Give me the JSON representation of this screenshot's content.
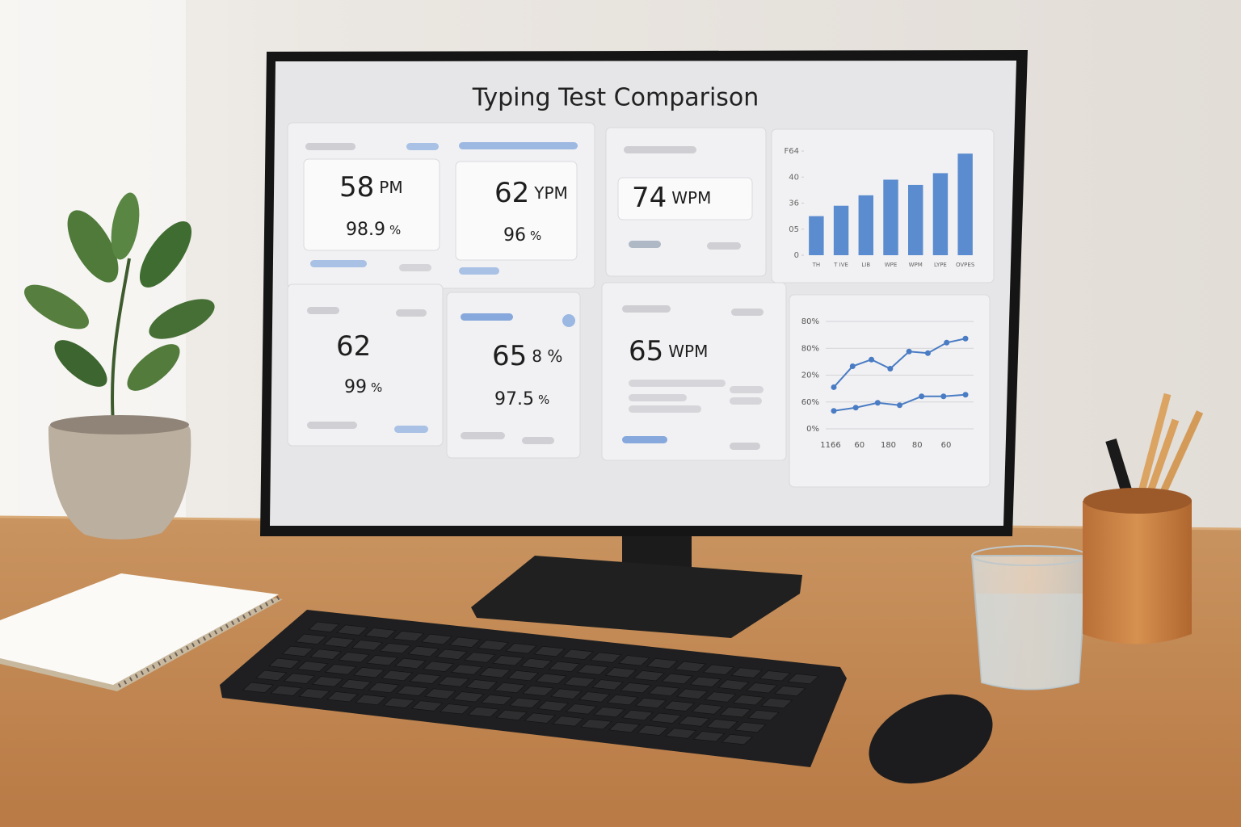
{
  "screen": {
    "title": "Typing Test Comparison",
    "cards": [
      {
        "wpm": "58",
        "wpm_unit": "PM",
        "accuracy": "98.9",
        "accuracy_unit": "%"
      },
      {
        "wpm": "62",
        "wpm_unit": "YPM",
        "accuracy": "96",
        "accuracy_unit": "%"
      },
      {
        "wpm": "74",
        "wpm_unit": "WPM"
      },
      {
        "wpm": "62",
        "accuracy": "99",
        "accuracy_unit": "%"
      },
      {
        "wpm": "65",
        "wpm_unit": "8 %",
        "accuracy": "97.5",
        "accuracy_unit": "%"
      },
      {
        "wpm": "65",
        "wpm_unit": "WPM"
      }
    ],
    "bar_chart": {
      "type": "bar",
      "categories": [
        "TH",
        "T IVE",
        "LIB",
        "WPE",
        "WPM",
        "LYPE",
        "OVPES"
      ],
      "values": [
        1.5,
        1.9,
        2.3,
        2.9,
        2.7,
        3.15,
        3.9
      ],
      "color": "#5b8ccf",
      "ylim": [
        0,
        4
      ],
      "yticks": [
        {
          "value": 0,
          "label": "0"
        },
        {
          "value": 1,
          "label": "05"
        },
        {
          "value": 2,
          "label": "36"
        },
        {
          "value": 3,
          "label": "40"
        },
        {
          "value": 4,
          "label": "F64"
        }
      ]
    },
    "line_chart": {
      "type": "line",
      "x_labels": [
        "1166",
        "60",
        "180",
        "80",
        "60"
      ],
      "series": [
        {
          "color": "#4a7cc4",
          "values": [
            1.55,
            2.33,
            2.58,
            2.24,
            2.88,
            2.82,
            3.21,
            3.36
          ]
        },
        {
          "color": "#4a7cc4",
          "values": [
            0.67,
            0.79,
            0.97,
            0.88,
            1.21,
            1.21,
            1.27
          ]
        }
      ],
      "ylim": [
        0,
        4
      ],
      "yticks": [
        {
          "value": 0,
          "label": "0%"
        },
        {
          "value": 1,
          "label": "60%"
        },
        {
          "value": 2,
          "label": "20%"
        },
        {
          "value": 3,
          "label": "80%"
        },
        {
          "value": 4,
          "label": "80%"
        }
      ],
      "grid": true
    }
  }
}
